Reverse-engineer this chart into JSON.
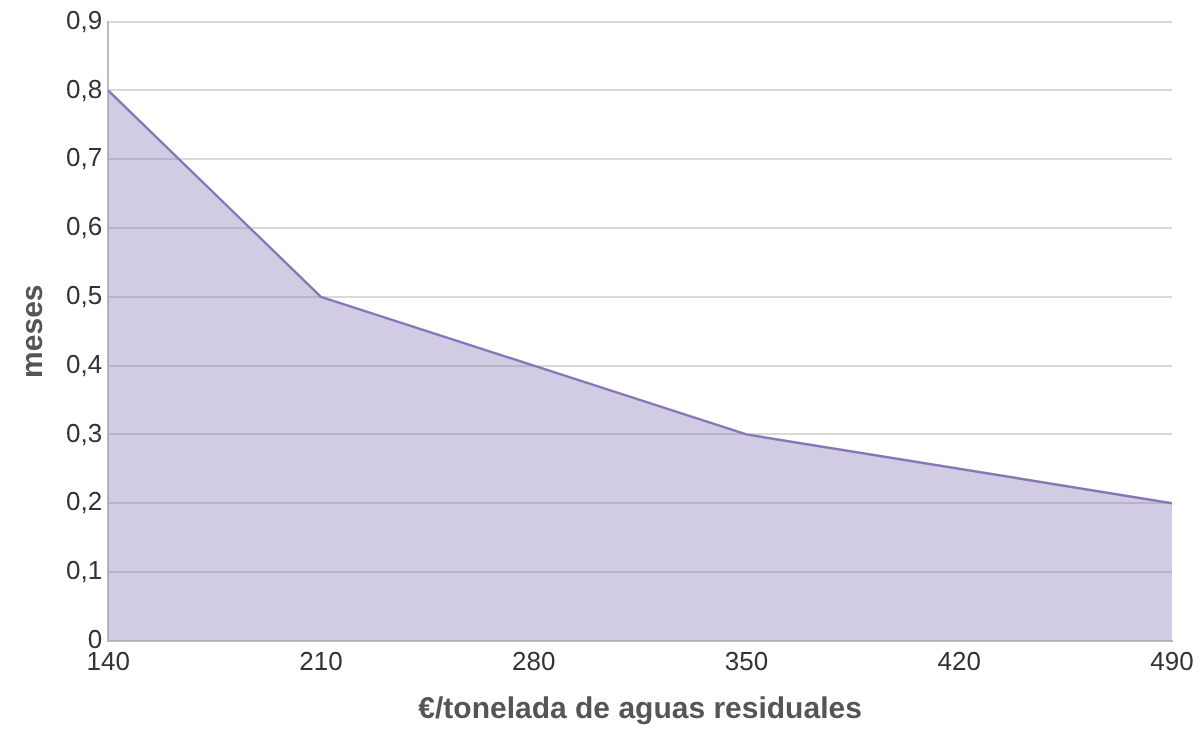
{
  "chart_data": {
    "type": "area",
    "xlabel": "€/tonelada de aguas residuales",
    "ylabel": "meses",
    "x": [
      140,
      210,
      350,
      490
    ],
    "series": [
      {
        "color": "#8576b8",
        "values": [
          0.8,
          0.5,
          0.3,
          0.2
        ]
      }
    ],
    "xlim": [
      140,
      490
    ],
    "xticks": [
      140,
      210,
      280,
      350,
      420,
      490
    ],
    "ylim": [
      0,
      0.9
    ],
    "yticks": [
      {
        "value": 0,
        "label": "0"
      },
      {
        "value": 0.1,
        "label": "0,1"
      },
      {
        "value": 0.2,
        "label": "0,2"
      },
      {
        "value": 0.3,
        "label": "0,3"
      },
      {
        "value": 0.4,
        "label": "0,4"
      },
      {
        "value": 0.5,
        "label": "0,5"
      },
      {
        "value": 0.6,
        "label": "0,6"
      },
      {
        "value": 0.7,
        "label": "0,7"
      },
      {
        "value": 0.8,
        "label": "0,8"
      },
      {
        "value": 0.9,
        "label": "0,9"
      }
    ],
    "grid": "y",
    "legend": false,
    "marker": "none"
  }
}
